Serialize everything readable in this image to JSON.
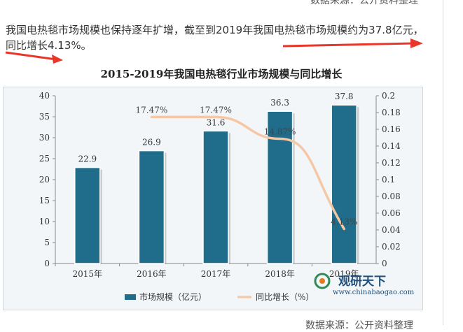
{
  "source_top": "数据来源：公开资料整理",
  "source_bottom": "数据来源：公开资料整理",
  "paragraph": "我国电热毯市场规模也保持逐年扩增，截至到2019年我国电热毯市场规模约为37.8亿元，同比增长4.13%。",
  "watermark": {
    "name": "观研天下",
    "url": "www.chinabaogao.com"
  },
  "colors": {
    "bar": "#1f6c8b",
    "line": "#f6c7a5",
    "arrow": "#e8362b"
  },
  "chart_data": {
    "type": "bar",
    "title": "2015-2019年我国电热毯行业市场规模与同比增长",
    "categories": [
      "2015年",
      "2016年",
      "2017年",
      "2018年",
      "2019年"
    ],
    "series": [
      {
        "name": "市场规模（亿元）",
        "type": "bar",
        "axis": "left",
        "values": [
          22.9,
          26.9,
          31.6,
          36.3,
          37.8
        ],
        "labels": [
          "22.9",
          "26.9",
          "31.6",
          "36.3",
          "37.8"
        ]
      },
      {
        "name": "同比增长（%）",
        "type": "line",
        "axis": "right",
        "values": [
          null,
          0.1747,
          0.1747,
          0.1487,
          0.0413
        ],
        "labels": [
          "",
          "17.47%",
          "17.47%",
          "14.87%",
          "4.13%"
        ]
      }
    ],
    "ylim_left": [
      0,
      40
    ],
    "yticks_left": [
      "0",
      "5",
      "10",
      "15",
      "20",
      "25",
      "30",
      "35",
      "40"
    ],
    "ylim_right": [
      0,
      0.2
    ],
    "yticks_right": [
      "0",
      "0.02",
      "0.04",
      "0.06",
      "0.08",
      "0.1",
      "0.12",
      "0.14",
      "0.16",
      "0.18",
      "0.2"
    ],
    "grid": false,
    "legend": "bottom"
  }
}
